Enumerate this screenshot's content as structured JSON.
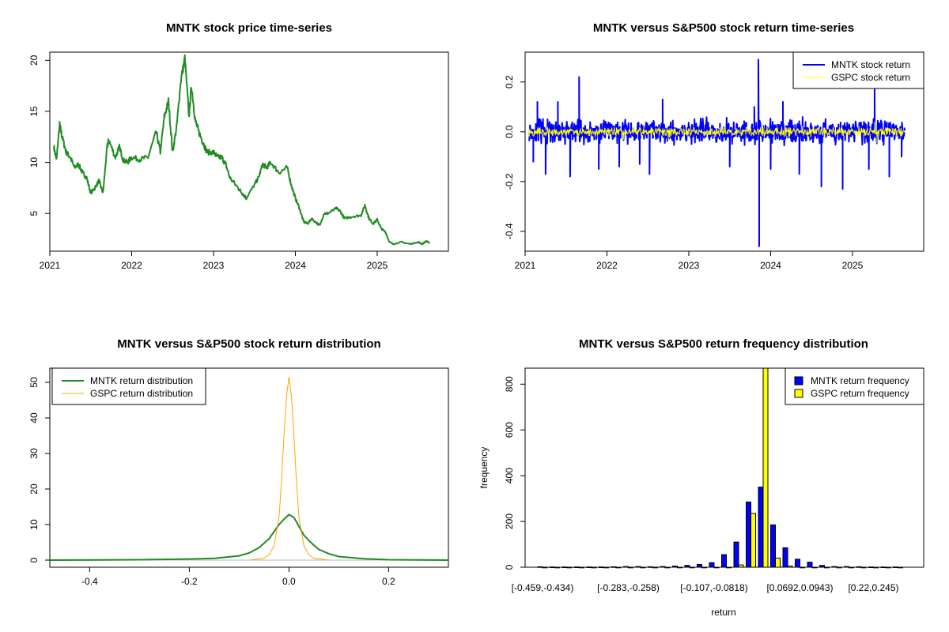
{
  "colors": {
    "mntk": "#228B22",
    "mntk_ret": "#0000FF",
    "gspc_ret": "#FFFF00",
    "gspc_dist": "#FFA500",
    "mntk_bar": "#0000FF",
    "gspc_bar": "#FFFF00"
  },
  "chart_data": [
    {
      "type": "line",
      "title": "MNTK stock price time-series",
      "xlabel": "",
      "ylabel": "",
      "xlim": [
        2021.0,
        2025.87
      ],
      "ylim": [
        1.3,
        20.8
      ],
      "x_ticks": [
        2021,
        2022,
        2023,
        2024,
        2025
      ],
      "x_tick_labels": [
        "2021",
        "2022",
        "2023",
        "2024",
        "2025"
      ],
      "y_ticks": [
        5,
        10,
        15,
        20
      ],
      "y_tick_labels": [
        "5",
        "10",
        "15",
        "20"
      ],
      "series": [
        {
          "name": "",
          "x": [
            2021.05,
            2021.08,
            2021.12,
            2021.15,
            2021.2,
            2021.25,
            2021.3,
            2021.35,
            2021.4,
            2021.45,
            2021.5,
            2021.55,
            2021.6,
            2021.65,
            2021.7,
            2021.72,
            2021.8,
            2021.85,
            2021.9,
            2021.95,
            2022.0,
            2022.1,
            2022.2,
            2022.3,
            2022.35,
            2022.4,
            2022.45,
            2022.5,
            2022.55,
            2022.6,
            2022.65,
            2022.7,
            2022.73,
            2022.78,
            2022.82,
            2022.87,
            2022.92,
            2023.0,
            2023.05,
            2023.1,
            2023.15,
            2023.2,
            2023.3,
            2023.35,
            2023.4,
            2023.5,
            2023.55,
            2023.6,
            2023.65,
            2023.7,
            2023.8,
            2023.9,
            2023.95,
            2024.0,
            2024.05,
            2024.1,
            2024.15,
            2024.2,
            2024.3,
            2024.35,
            2024.4,
            2024.5,
            2024.55,
            2024.6,
            2024.7,
            2024.8,
            2024.85,
            2024.9,
            2024.95,
            2025.0,
            2025.05,
            2025.1,
            2025.15,
            2025.2,
            2025.3,
            2025.4,
            2025.5,
            2025.55,
            2025.6,
            2025.64
          ],
          "values": [
            11.5,
            10.2,
            13.7,
            12.5,
            11.0,
            10.5,
            9.5,
            9.8,
            9.0,
            8.5,
            7.0,
            7.5,
            8.2,
            7.0,
            11.5,
            12.2,
            10.5,
            11.5,
            10.2,
            10.0,
            10.5,
            10.3,
            10.5,
            13.0,
            11.0,
            14.5,
            16.0,
            11.0,
            13.5,
            18.0,
            20.2,
            14.5,
            17.5,
            14.0,
            13.0,
            12.0,
            11.0,
            11.0,
            10.5,
            10.5,
            9.8,
            8.5,
            7.5,
            7.0,
            6.5,
            7.8,
            8.5,
            9.8,
            9.5,
            10.0,
            9.0,
            9.5,
            7.8,
            6.5,
            5.5,
            4.2,
            4.0,
            4.5,
            3.8,
            5.0,
            5.0,
            5.5,
            5.2,
            4.5,
            4.7,
            4.8,
            5.8,
            4.5,
            4.0,
            4.4,
            3.5,
            3.2,
            2.2,
            2.0,
            2.2,
            2.0,
            2.2,
            2.0,
            2.3,
            2.1
          ]
        }
      ]
    },
    {
      "type": "line",
      "title": "MNTK versus S&P500 stock return time-series",
      "xlabel": "",
      "ylabel": "",
      "xlim": [
        2021.0,
        2025.87
      ],
      "ylim": [
        -0.48,
        0.32
      ],
      "x_ticks": [
        2021,
        2022,
        2023,
        2024,
        2025
      ],
      "x_tick_labels": [
        "2021",
        "2022",
        "2023",
        "2024",
        "2025"
      ],
      "y_ticks": [
        -0.4,
        -0.2,
        0.0,
        0.2
      ],
      "y_tick_labels": [
        "-0.4",
        "-0.2",
        "0.0",
        "0.2"
      ],
      "legend": {
        "position": "top-right",
        "entries": [
          "MNTK stock return",
          "GSPC stock return"
        ]
      },
      "series": [
        {
          "name": "MNTK stock return",
          "x_range": [
            2021.05,
            2025.64
          ],
          "band": 0.05,
          "spikes": [
            [
              2021.1,
              -0.12
            ],
            [
              2021.15,
              0.12
            ],
            [
              2021.25,
              -0.17
            ],
            [
              2021.4,
              0.12
            ],
            [
              2021.55,
              -0.18
            ],
            [
              2021.66,
              0.22
            ],
            [
              2021.9,
              -0.15
            ],
            [
              2022.15,
              -0.14
            ],
            [
              2022.4,
              -0.13
            ],
            [
              2022.52,
              -0.17
            ],
            [
              2022.68,
              0.13
            ],
            [
              2023.5,
              -0.14
            ],
            [
              2023.8,
              0.1
            ],
            [
              2023.85,
              0.29
            ],
            [
              2023.86,
              -0.46
            ],
            [
              2024.0,
              -0.15
            ],
            [
              2024.15,
              0.12
            ],
            [
              2024.35,
              -0.17
            ],
            [
              2024.62,
              -0.22
            ],
            [
              2024.88,
              -0.23
            ],
            [
              2025.2,
              -0.15
            ],
            [
              2025.27,
              0.17
            ],
            [
              2025.45,
              -0.18
            ],
            [
              2025.6,
              -0.1
            ]
          ]
        },
        {
          "name": "GSPC stock return",
          "x_range": [
            2021.05,
            2025.64
          ],
          "band": 0.018,
          "spikes": [
            [
              2022.2,
              -0.03
            ],
            [
              2022.45,
              0.035
            ],
            [
              2022.75,
              -0.035
            ],
            [
              2025.27,
              0.04
            ],
            [
              2025.3,
              -0.045
            ]
          ]
        }
      ]
    },
    {
      "type": "line",
      "title": "MNTK versus S&P500 stock return distribution",
      "xlabel": "",
      "ylabel": "",
      "xlim": [
        -0.48,
        0.32
      ],
      "ylim": [
        -2,
        54
      ],
      "x_ticks": [
        -0.4,
        -0.2,
        0.0,
        0.2
      ],
      "x_tick_labels": [
        "-0.4",
        "-0.2",
        "0.0",
        "0.2"
      ],
      "y_ticks": [
        0,
        10,
        20,
        30,
        40,
        50
      ],
      "y_tick_labels": [
        "0",
        "10",
        "20",
        "30",
        "40",
        "50"
      ],
      "legend": {
        "position": "top-left",
        "entries": [
          "MNTK return distribution",
          "GSPC return distribution"
        ]
      },
      "series": [
        {
          "name": "MNTK return distribution",
          "x": [
            -0.48,
            -0.3,
            -0.2,
            -0.15,
            -0.1,
            -0.08,
            -0.06,
            -0.04,
            -0.03,
            -0.02,
            -0.01,
            0.0,
            0.01,
            0.02,
            0.03,
            0.04,
            0.05,
            0.06,
            0.08,
            0.1,
            0.15,
            0.2,
            0.32
          ],
          "values": [
            0,
            0.1,
            0.3,
            0.5,
            1.2,
            2.0,
            3.5,
            6.0,
            8.0,
            10.0,
            11.5,
            12.8,
            12.0,
            9.5,
            7.0,
            5.5,
            4.2,
            3.0,
            1.8,
            1.0,
            0.4,
            0.1,
            0
          ]
        },
        {
          "name": "GSPC return distribution",
          "x": [
            -0.08,
            -0.05,
            -0.04,
            -0.03,
            -0.02,
            -0.015,
            -0.01,
            -0.005,
            0.0,
            0.005,
            0.01,
            0.015,
            0.02,
            0.03,
            0.04,
            0.05,
            0.08
          ],
          "values": [
            0,
            0.5,
            1.5,
            4.0,
            12.0,
            22.0,
            35.0,
            46.0,
            51.5,
            46.0,
            35.0,
            22.0,
            12.0,
            4.0,
            1.5,
            0.5,
            0
          ]
        }
      ]
    },
    {
      "type": "bar",
      "title": "MNTK versus S&P500 return frequency distribution",
      "xlabel": "return",
      "ylabel": "frequency",
      "ylim": [
        0,
        870
      ],
      "y_ticks": [
        0,
        200,
        400,
        600,
        800
      ],
      "y_tick_labels": [
        "0",
        "200",
        "400",
        "600",
        "800"
      ],
      "x_tick_labels": [
        "[-0.459,-0.434)",
        "[-0.283,-0.258)",
        "[-0.107,-0.0818)",
        "[0.0692,0.0943)",
        "[0.22,0.245)"
      ],
      "x_tick_indices": [
        0,
        7,
        14,
        21,
        27
      ],
      "legend": {
        "position": "top-right",
        "entries": [
          "MNTK return frequency",
          "GSPC return frequency"
        ]
      },
      "categories_count": 30,
      "series": [
        {
          "name": "MNTK return frequency",
          "values": [
            2,
            1,
            1,
            1,
            1,
            1,
            2,
            3,
            3,
            2,
            3,
            5,
            8,
            12,
            20,
            55,
            110,
            285,
            350,
            185,
            85,
            35,
            22,
            8,
            3,
            3,
            2,
            1,
            1,
            1
          ]
        },
        {
          "name": "GSPC return frequency",
          "values": [
            0,
            0,
            0,
            0,
            0,
            0,
            0,
            0,
            0,
            0,
            0,
            0,
            0,
            0,
            0,
            0,
            10,
            235,
            870,
            40,
            5,
            0,
            0,
            0,
            0,
            0,
            0,
            0,
            0,
            0
          ]
        }
      ]
    }
  ]
}
